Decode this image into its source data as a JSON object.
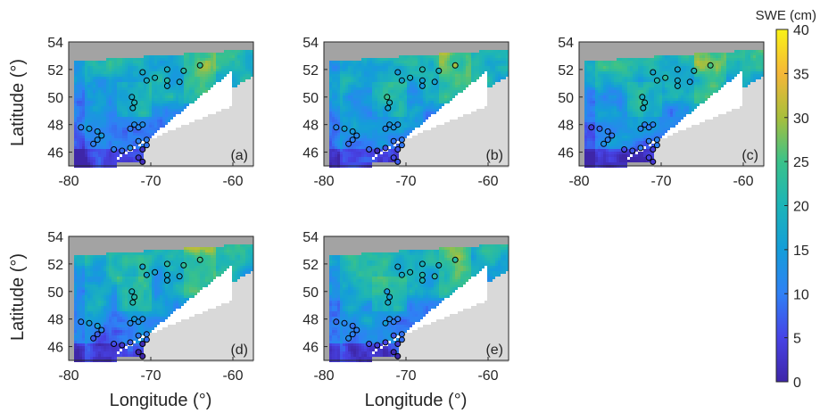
{
  "figure": {
    "colorbar": {
      "title": "SWE (cm)",
      "ticks": [
        "0",
        "5",
        "10",
        "15",
        "20",
        "25",
        "30",
        "35",
        "40"
      ],
      "min": 0,
      "max": 40,
      "colors": [
        "#3e26a8",
        "#4743e6",
        "#2f80f5",
        "#149dd9",
        "#1cb4b8",
        "#3ac28a",
        "#a8bf3c",
        "#f5b738",
        "#f9f216"
      ]
    },
    "axis_labels": {
      "x": "Longitude (°)",
      "y": "Latitude (°)"
    },
    "panel_labels": [
      "(a)",
      "(b)",
      "(c)",
      "(d)",
      "(e)"
    ],
    "x_ticks": [
      "-80",
      "-70",
      "-60"
    ],
    "y_ticks": [
      "46",
      "48",
      "50",
      "52",
      "54"
    ]
  },
  "chart_data": {
    "type": "heatmap",
    "description_of_panels": "5 maps of snow water equivalent over Quebec",
    "xlim": [
      -80,
      -57.5
    ],
    "ylim": [
      45,
      54
    ],
    "x_ticks": [
      -80,
      -70,
      -60
    ],
    "y_ticks": [
      46,
      48,
      50,
      52,
      54
    ],
    "color_range": [
      0,
      40
    ],
    "colormap": "parula",
    "panels": [
      "(a)",
      "(b)",
      "(c)",
      "(d)",
      "(e)"
    ],
    "stations_lon_lat": [
      [
        -71.0,
        51.8
      ],
      [
        -68.0,
        52.0
      ],
      [
        -66.0,
        51.9
      ],
      [
        -64.0,
        52.3
      ],
      [
        -69.5,
        51.4
      ],
      [
        -70.5,
        51.2
      ],
      [
        -68.0,
        51.2
      ],
      [
        -68.0,
        50.8
      ],
      [
        -66.5,
        51.1
      ],
      [
        -72.3,
        50.0
      ],
      [
        -72.0,
        49.6
      ],
      [
        -72.2,
        49.2
      ],
      [
        -72.0,
        48.0
      ],
      [
        -72.5,
        47.7
      ],
      [
        -71.5,
        47.8
      ],
      [
        -71.0,
        48.0
      ],
      [
        -78.5,
        47.8
      ],
      [
        -77.5,
        47.7
      ],
      [
        -76.5,
        47.5
      ],
      [
        -76.0,
        47.2
      ],
      [
        -76.5,
        46.9
      ],
      [
        -77.0,
        46.6
      ],
      [
        -74.5,
        46.2
      ],
      [
        -73.5,
        46.1
      ],
      [
        -72.5,
        46.3
      ],
      [
        -71.0,
        46.2
      ],
      [
        -70.5,
        46.5
      ],
      [
        -71.5,
        45.6
      ],
      [
        -71.0,
        45.3
      ],
      [
        -70.5,
        46.9
      ],
      [
        -71.5,
        46.8
      ]
    ]
  }
}
